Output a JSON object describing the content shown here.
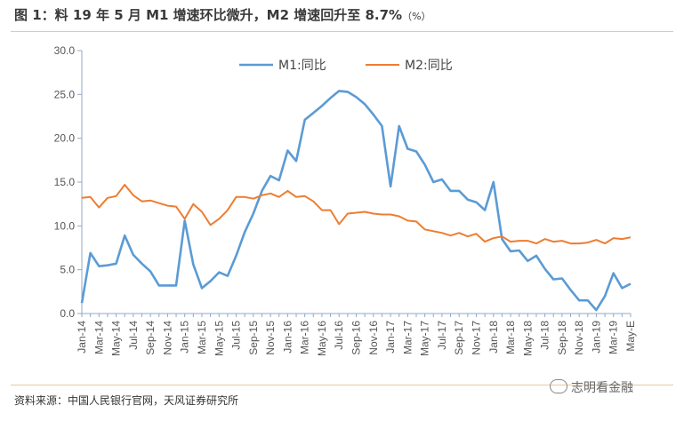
{
  "header": {
    "title": "图 1：料 19 年 5 月 M1 增速环比微升，M2 增速回升至 8.7%",
    "title_unit": "（%）"
  },
  "footer": {
    "source": "资料来源：中国人民银行官网，天风证券研究所",
    "watermark": "志明看金融"
  },
  "colors": {
    "m1": "#5b9bd5",
    "m2": "#ed7d31",
    "axis": "#8fa9c8",
    "grid": "#d9d9d9"
  },
  "chart_data": {
    "type": "line",
    "title": "",
    "xlabel": "",
    "ylabel": "",
    "ylim": [
      0,
      30
    ],
    "yticks": [
      "0.0",
      "5.0",
      "10.0",
      "15.0",
      "20.0",
      "25.0",
      "30.0"
    ],
    "legend_position": "top-center",
    "grid": false,
    "x": [
      "Jan-14",
      "Feb-14",
      "Mar-14",
      "Apr-14",
      "May-14",
      "Jun-14",
      "Jul-14",
      "Aug-14",
      "Sep-14",
      "Oct-14",
      "Nov-14",
      "Dec-14",
      "Jan-15",
      "Feb-15",
      "Mar-15",
      "Apr-15",
      "May-15",
      "Jun-15",
      "Jul-15",
      "Aug-15",
      "Sep-15",
      "Oct-15",
      "Nov-15",
      "Dec-15",
      "Jan-16",
      "Feb-16",
      "Mar-16",
      "Apr-16",
      "May-16",
      "Jun-16",
      "Jul-16",
      "Aug-16",
      "Sep-16",
      "Oct-16",
      "Nov-16",
      "Dec-16",
      "Jan-17",
      "Feb-17",
      "Mar-17",
      "Apr-17",
      "May-17",
      "Jun-17",
      "Jul-17",
      "Aug-17",
      "Sep-17",
      "Oct-17",
      "Nov-17",
      "Dec-17",
      "Jan-18",
      "Feb-18",
      "Mar-18",
      "Apr-18",
      "May-18",
      "Jun-18",
      "Jul-18",
      "Aug-18",
      "Sep-18",
      "Oct-18",
      "Nov-18",
      "Dec-18",
      "Jan-19",
      "Feb-19",
      "Mar-19",
      "Apr-19",
      "May-19"
    ],
    "tick_labels": [
      "Jan-14",
      "Mar-14",
      "May-14",
      "Jul-14",
      "Sep-14",
      "Nov-14",
      "Jan-15",
      "Mar-15",
      "May-15",
      "Jul-15",
      "Sep-15",
      "Nov-15",
      "Jan-16",
      "Mar-16",
      "May-16",
      "Jul-16",
      "Sep-16",
      "Nov-16",
      "Jan-17",
      "Mar-17",
      "May-17",
      "Jul-17",
      "Sep-17",
      "Nov-17",
      "Jan-18",
      "Mar-18",
      "May-18",
      "Jul-18",
      "Sep-18",
      "Nov-18",
      "Jan-19",
      "Mar-19",
      "May-E"
    ],
    "series": [
      {
        "name": "M1:同比",
        "color": "#5b9bd5",
        "values": [
          1.2,
          6.9,
          5.4,
          5.5,
          5.7,
          8.9,
          6.7,
          5.7,
          4.8,
          3.2,
          3.2,
          3.2,
          10.6,
          5.6,
          2.9,
          3.7,
          4.7,
          4.3,
          6.6,
          9.3,
          11.4,
          14.0,
          15.7,
          15.2,
          18.6,
          17.4,
          22.1,
          22.9,
          23.7,
          24.6,
          25.4,
          25.3,
          24.7,
          23.9,
          22.7,
          21.4,
          14.5,
          21.4,
          18.8,
          18.5,
          17.0,
          15.0,
          15.3,
          14.0,
          14.0,
          13.0,
          12.7,
          11.8,
          15.0,
          8.5,
          7.1,
          7.2,
          6.0,
          6.6,
          5.1,
          3.9,
          4.0,
          2.7,
          1.5,
          1.5,
          0.4,
          2.0,
          4.6,
          2.9,
          3.4
        ]
      },
      {
        "name": "M2:同比",
        "color": "#ed7d31",
        "values": [
          13.2,
          13.3,
          12.1,
          13.2,
          13.4,
          14.7,
          13.5,
          12.8,
          12.9,
          12.6,
          12.3,
          12.2,
          10.8,
          12.5,
          11.6,
          10.1,
          10.8,
          11.8,
          13.3,
          13.3,
          13.1,
          13.5,
          13.7,
          13.3,
          14.0,
          13.3,
          13.4,
          12.8,
          11.8,
          11.8,
          10.2,
          11.4,
          11.5,
          11.6,
          11.4,
          11.3,
          11.3,
          11.1,
          10.6,
          10.5,
          9.6,
          9.4,
          9.2,
          8.9,
          9.2,
          8.8,
          9.1,
          8.2,
          8.6,
          8.8,
          8.2,
          8.3,
          8.3,
          8.0,
          8.5,
          8.2,
          8.3,
          8.0,
          8.0,
          8.1,
          8.4,
          8.0,
          8.6,
          8.5,
          8.7
        ]
      }
    ]
  }
}
